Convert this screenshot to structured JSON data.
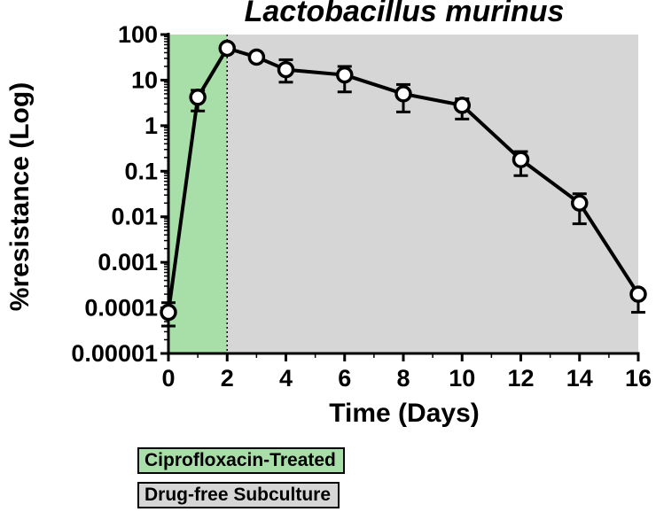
{
  "chart_data": {
    "type": "line",
    "title": "Lactobacillus murinus",
    "xlabel": "Time (Days)",
    "ylabel": "%resistance (Log)",
    "yscale": "log",
    "xlim": [
      0,
      16
    ],
    "ylim": [
      1e-05,
      100
    ],
    "x_ticks": [
      0,
      2,
      4,
      6,
      8,
      10,
      12,
      14,
      16
    ],
    "y_ticks": [
      1e-05,
      0.0001,
      0.001,
      0.01,
      0.1,
      1,
      10,
      100
    ],
    "y_tick_labels": [
      "0.00001",
      "0.0001",
      "0.001",
      "0.01",
      "0.1",
      "1",
      "10",
      "100"
    ],
    "grid": false,
    "series": [
      {
        "x": [
          0,
          1,
          2,
          3,
          4,
          6,
          8,
          10,
          12,
          14,
          16
        ],
        "y": [
          8e-05,
          4.2,
          50,
          32,
          17,
          13,
          5,
          2.8,
          0.18,
          0.02,
          0.0002
        ],
        "err_low": [
          4e-05,
          2.1,
          50,
          32,
          9,
          5.5,
          2,
          1.4,
          0.08,
          0.007,
          8e-05
        ],
        "err_high": [
          0.00013,
          6,
          50,
          32,
          28,
          20,
          8,
          3.9,
          0.27,
          0.032,
          0.0002
        ],
        "color": "#000000",
        "marker": "open-circle"
      }
    ],
    "regions": [
      {
        "label": "Ciprofloxacin-Treated",
        "x_from": 0,
        "x_to": 2,
        "color": "#a8dfa8"
      },
      {
        "label": "Drug-free Subculture",
        "x_from": 2,
        "x_to": 16,
        "color": "#d6d6d6"
      }
    ],
    "vline_x": 2,
    "legend_position": "bottom-left"
  }
}
